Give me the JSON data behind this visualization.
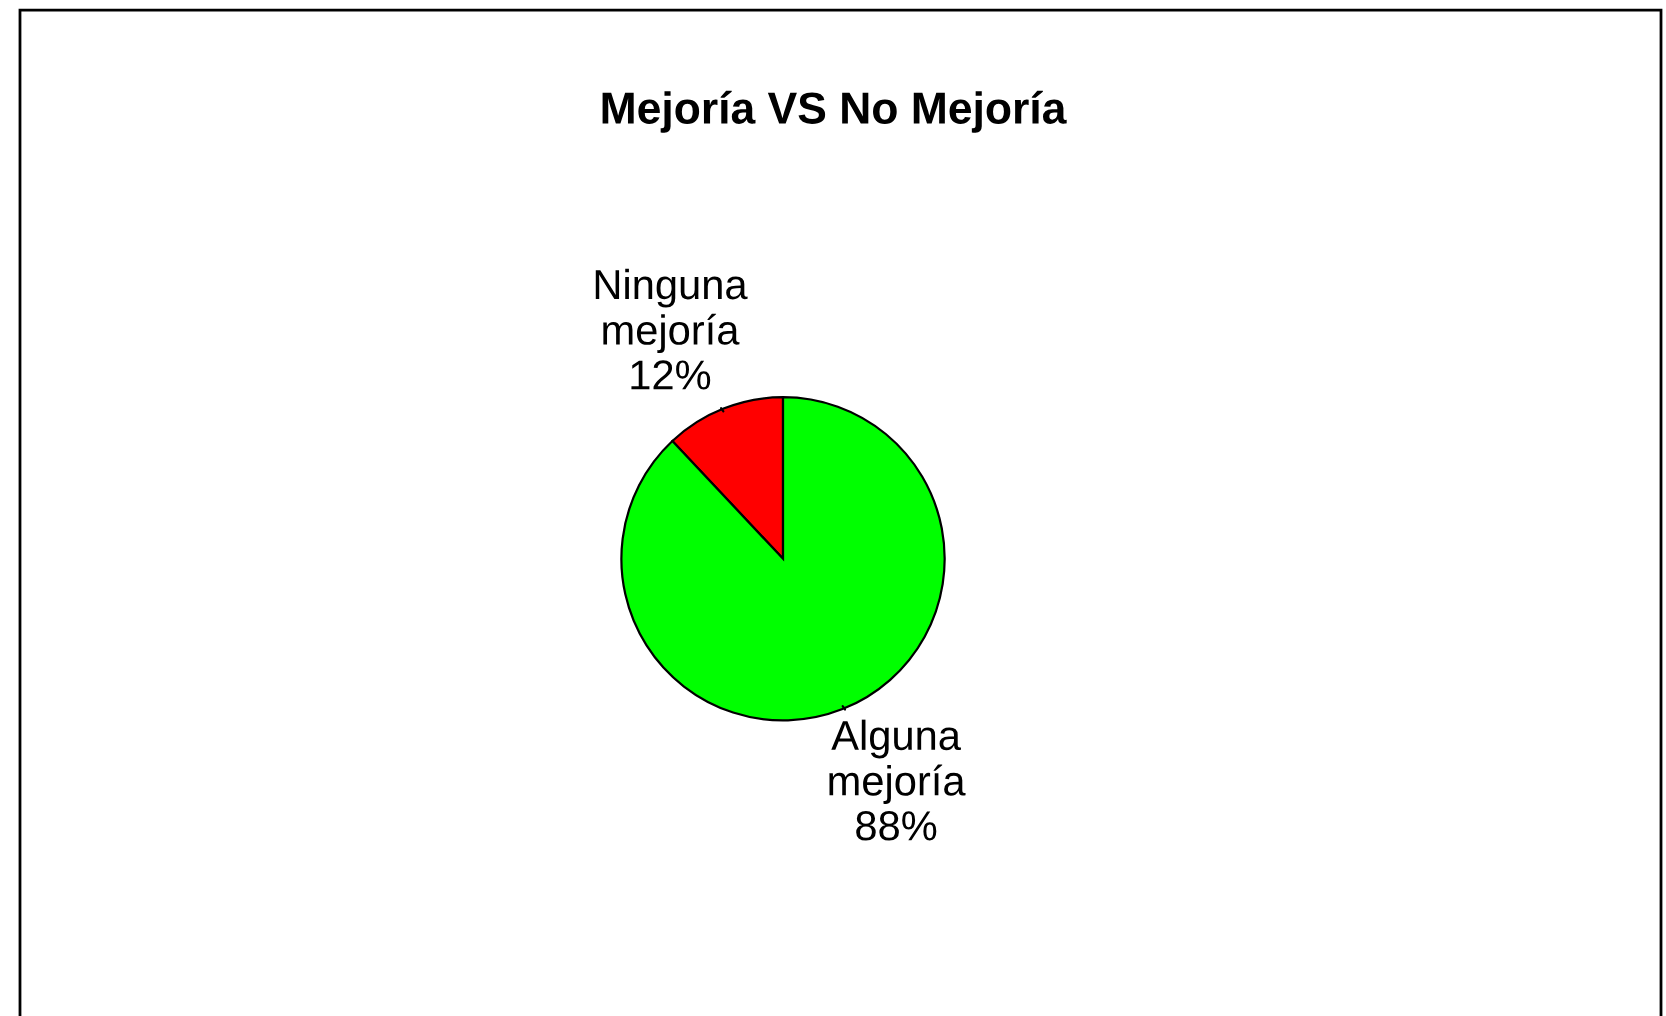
{
  "chart_data": {
    "type": "pie",
    "title": "Mejoría VS No Mejoría",
    "categories": [
      "Ninguna mejoría",
      "Alguna mejoría"
    ],
    "values": [
      12,
      88
    ],
    "value_labels": [
      "12%",
      "88%"
    ],
    "colors": [
      "#ff0000",
      "#00ff00"
    ]
  }
}
